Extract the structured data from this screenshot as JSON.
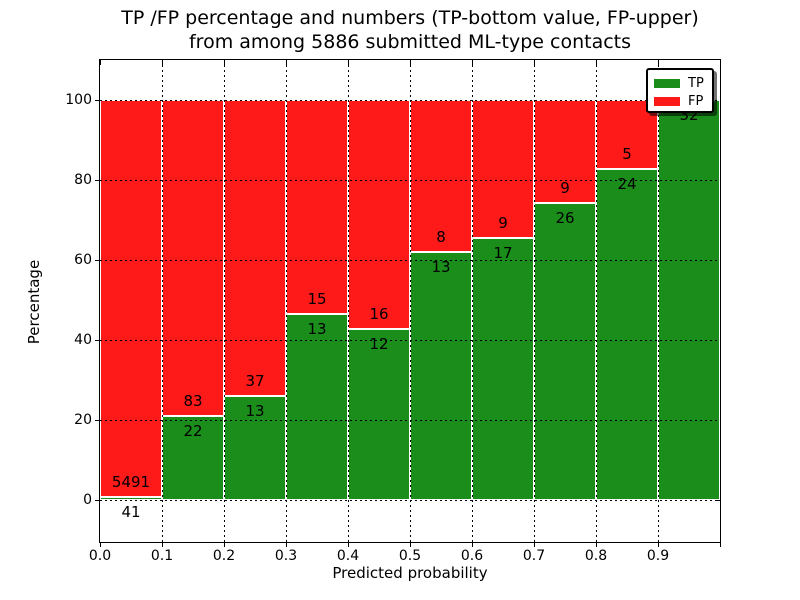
{
  "title": {
    "line1": "TP /FP percentage and numbers (TP-bottom value, FP-upper)",
    "line2": "from among 5886 submitted ML-type contacts"
  },
  "axes": {
    "xlabel": "Predicted probability",
    "ylabel": "Percentage",
    "x_tick_labels": [
      "0.0",
      "0.1",
      "0.2",
      "0.3",
      "0.4",
      "0.5",
      "0.6",
      "0.7",
      "0.8",
      "0.9"
    ],
    "x_tick_values": [
      0.0,
      0.1,
      0.2,
      0.3,
      0.4,
      0.5,
      0.6,
      0.7,
      0.8,
      0.9
    ],
    "y_tick_labels": [
      "0",
      "20",
      "40",
      "60",
      "80",
      "100"
    ],
    "y_tick_values": [
      0,
      20,
      40,
      60,
      80,
      100
    ],
    "xlim": [
      0.0,
      1.0
    ],
    "ylim": [
      -10.5,
      110
    ],
    "grid": "dotted black"
  },
  "legend": {
    "location": "upper right",
    "items": [
      {
        "label": "TP",
        "color": "#1a8d1a"
      },
      {
        "label": "FP",
        "color": "#ff1a1a"
      }
    ]
  },
  "chart_data": {
    "type": "bar",
    "stacked": true,
    "total_contacts": 5886,
    "bin_edges": [
      0.0,
      0.1,
      0.2,
      0.3,
      0.4,
      0.5,
      0.6,
      0.7,
      0.8,
      0.9,
      1.0
    ],
    "categories": [
      "0.0-0.1",
      "0.1-0.2",
      "0.2-0.3",
      "0.3-0.4",
      "0.4-0.5",
      "0.5-0.6",
      "0.6-0.7",
      "0.7-0.8",
      "0.8-0.9",
      "0.9-1.0"
    ],
    "series": [
      {
        "name": "TP",
        "color": "#1a8d1a",
        "counts": [
          41,
          22,
          13,
          13,
          12,
          13,
          17,
          26,
          24,
          32
        ],
        "percent": [
          0.74,
          20.95,
          26.0,
          46.43,
          42.86,
          61.9,
          65.38,
          74.29,
          82.76,
          100.0
        ]
      },
      {
        "name": "FP",
        "color": "#ff1a1a",
        "counts": [
          5491,
          83,
          37,
          15,
          16,
          8,
          9,
          9,
          5,
          0
        ],
        "percent": [
          99.26,
          79.05,
          74.0,
          53.57,
          57.14,
          38.1,
          34.62,
          25.71,
          17.24,
          0.0
        ]
      }
    ],
    "count_labels": {
      "tp_shown": [
        "41",
        "22",
        "13",
        "13",
        "12",
        "13",
        "17",
        "26",
        "24",
        "32"
      ],
      "fp_shown": [
        "5491",
        "83",
        "37",
        "15",
        "16",
        "8",
        "9",
        "9",
        "5",
        null
      ]
    },
    "title": "TP /FP percentage and numbers (TP-bottom value, FP-upper) from among 5886 submitted ML-type contacts",
    "xlabel": "Predicted probability",
    "ylabel": "Percentage"
  }
}
